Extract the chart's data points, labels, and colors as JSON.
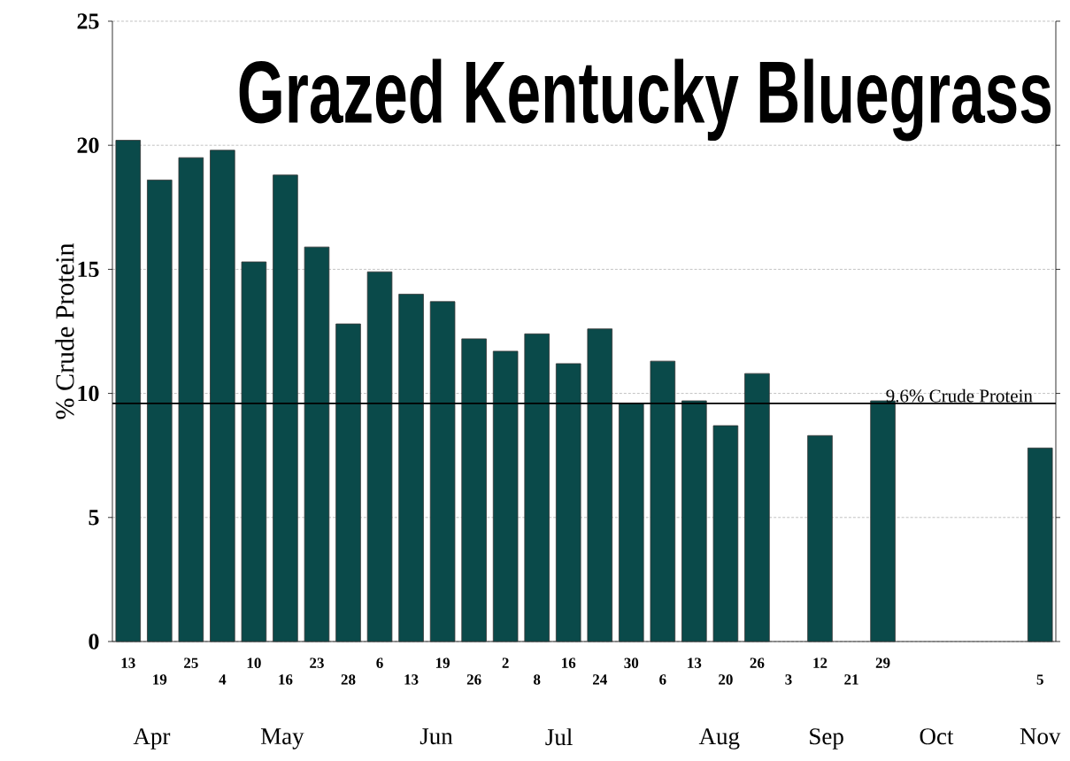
{
  "chart_data": {
    "type": "bar",
    "title": "Grazed Kentucky Bluegrass",
    "ylabel": "% Crude Protein",
    "categories": [
      "13",
      "19",
      "25",
      "4",
      "10",
      "16",
      "23",
      "28",
      "6",
      "13",
      "19",
      "26",
      "2",
      "8",
      "16",
      "24",
      "30",
      "6",
      "13",
      "20",
      "26",
      "3",
      "12",
      "21",
      "29",
      null,
      null,
      null,
      null,
      "5"
    ],
    "values": [
      20.2,
      18.6,
      19.5,
      19.8,
      15.3,
      18.8,
      15.9,
      12.8,
      14.9,
      14.0,
      13.7,
      12.2,
      11.7,
      12.4,
      11.2,
      12.6,
      9.6,
      11.3,
      9.7,
      8.7,
      10.8,
      null,
      8.3,
      null,
      9.7,
      null,
      null,
      null,
      null,
      7.8
    ],
    "color": "#0a4a4a",
    "ylim": [
      0,
      25
    ],
    "yticks": [
      0,
      5,
      10,
      15,
      20,
      25
    ],
    "grid": "y",
    "ref_lines": [
      {
        "axis": "y",
        "value": 9.6,
        "label": "9.6% Crude Protein",
        "color": "#000000"
      }
    ],
    "annotations": [
      "Apr",
      "May",
      "Jun",
      "Jul",
      "Aug",
      "Sep",
      "Oct",
      "Nov"
    ]
  }
}
